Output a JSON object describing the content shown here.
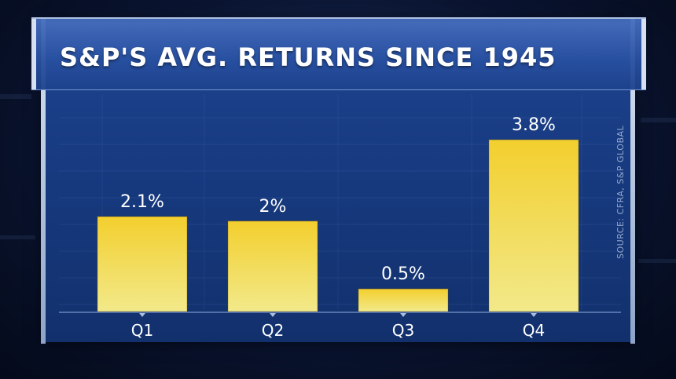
{
  "title": "S&P'S AVG. RETURNS SINCE 1945",
  "source": "SOURCE: CFRA, S&P GLOBAL",
  "colors": {
    "bar_top": "#f3cf2e",
    "bar_bottom": "#f2e98a",
    "panel": "#1a3d85",
    "text": "#ffffff"
  },
  "chart_data": {
    "type": "bar",
    "title": "S&P'S AVG. RETURNS SINCE 1945",
    "categories": [
      "Q1",
      "Q2",
      "Q3",
      "Q4"
    ],
    "values": [
      2.1,
      2.0,
      0.5,
      3.8
    ],
    "value_labels": [
      "2.1%",
      "2%",
      "0.5%",
      "3.8%"
    ],
    "ylim": [
      0,
      4
    ],
    "grid": true,
    "legend": "none"
  }
}
